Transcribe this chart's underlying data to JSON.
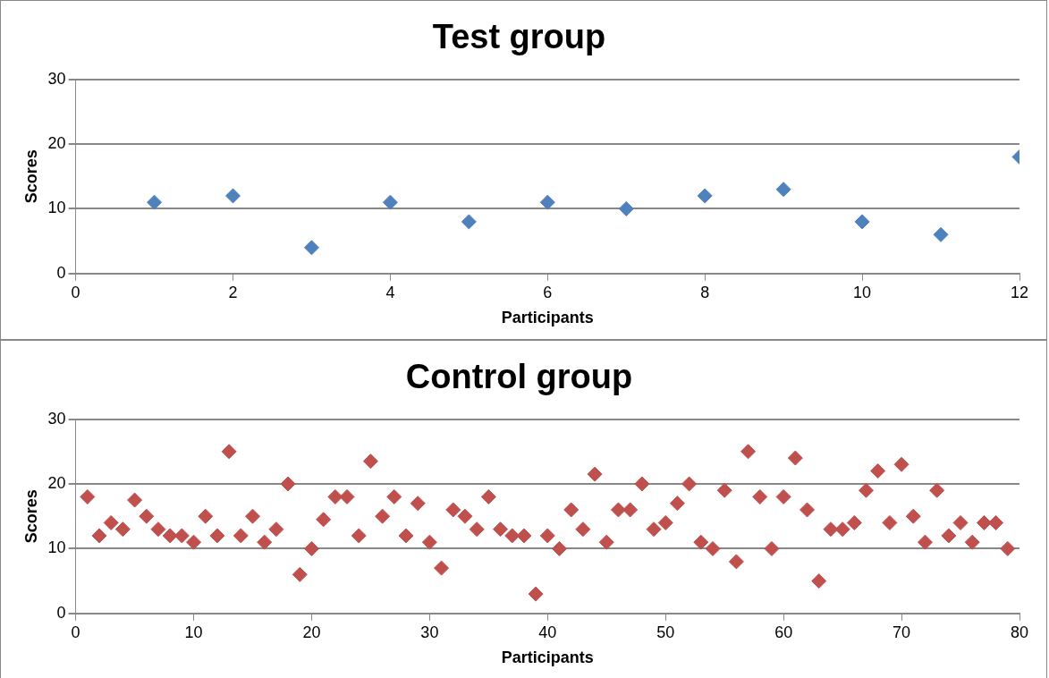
{
  "chart_data": [
    {
      "type": "scatter",
      "title": "Test group",
      "xlabel": "Participants",
      "ylabel": "Scores",
      "x": [
        1,
        2,
        3,
        4,
        5,
        6,
        7,
        8,
        9,
        10,
        11,
        12
      ],
      "series": [
        {
          "color": "#4f81bd",
          "values": [
            11,
            12,
            4,
            11,
            8,
            11,
            10,
            12,
            13,
            8,
            6,
            18
          ]
        }
      ],
      "xlim": [
        0,
        12
      ],
      "xticks": [
        0,
        2,
        4,
        6,
        8,
        10,
        12
      ],
      "ylim": [
        0,
        30
      ],
      "yticks": [
        0,
        10,
        20,
        30
      ],
      "grid": "y",
      "legend": false,
      "marker": "diamond"
    },
    {
      "type": "scatter",
      "title": "Control group",
      "xlabel": "Participants",
      "ylabel": "Scores",
      "x": [
        1,
        2,
        3,
        4,
        5,
        6,
        7,
        8,
        9,
        10,
        11,
        12,
        13,
        14,
        15,
        16,
        17,
        18,
        19,
        20,
        21,
        22,
        23,
        24,
        25,
        26,
        27,
        28,
        29,
        30,
        31,
        32,
        33,
        34,
        35,
        36,
        37,
        38,
        39,
        40,
        41,
        42,
        43,
        44,
        45,
        46,
        47,
        48,
        49,
        50,
        51,
        52,
        53,
        54,
        55,
        56,
        57,
        58,
        59,
        60,
        61,
        62,
        63,
        64,
        65,
        66,
        67,
        68,
        69,
        70,
        71,
        72,
        73,
        74,
        75,
        76,
        77,
        78,
        79
      ],
      "series": [
        {
          "color": "#c0504d",
          "values": [
            18,
            12,
            14,
            13,
            17.5,
            15,
            13,
            12,
            12,
            11,
            15,
            12,
            25,
            12,
            15,
            11,
            13,
            20,
            6,
            10,
            14.5,
            18,
            18,
            12,
            23.5,
            15,
            18,
            12,
            17,
            11,
            7,
            16,
            15,
            13,
            18,
            13,
            12,
            12,
            3,
            12,
            10,
            16,
            13,
            21.5,
            11,
            16,
            16,
            20,
            13,
            14,
            17,
            20,
            11,
            10,
            19,
            8,
            25,
            18,
            10,
            18,
            24,
            16,
            5,
            13,
            13,
            14,
            19,
            22,
            14,
            23,
            15,
            11,
            19,
            12,
            14,
            11,
            14,
            14,
            10
          ]
        }
      ],
      "xlim": [
        0,
        80
      ],
      "xticks": [
        0,
        10,
        20,
        30,
        40,
        50,
        60,
        70,
        80
      ],
      "ylim": [
        0,
        30
      ],
      "yticks": [
        0,
        10,
        20,
        30
      ],
      "grid": "y",
      "legend": false,
      "marker": "diamond"
    }
  ]
}
